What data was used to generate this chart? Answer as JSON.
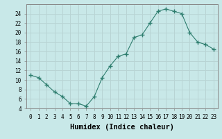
{
  "x": [
    0,
    1,
    2,
    3,
    4,
    5,
    6,
    7,
    8,
    9,
    10,
    11,
    12,
    13,
    14,
    15,
    16,
    17,
    18,
    19,
    20,
    21,
    22,
    23
  ],
  "y": [
    11,
    10.5,
    9,
    7.5,
    6.5,
    5,
    5,
    4.5,
    6.5,
    10.5,
    13,
    15,
    15.5,
    19,
    19.5,
    22,
    24.5,
    25,
    24.5,
    24,
    20,
    18,
    17.5,
    16.5
  ],
  "line_color": "#2e7d6e",
  "marker": "+",
  "marker_size": 4,
  "bg_color": "#c8e8e8",
  "grid_color": "#b8d4d4",
  "xlabel": "Humidex (Indice chaleur)",
  "ylim": [
    4,
    26
  ],
  "xlim": [
    -0.5,
    23.5
  ],
  "yticks": [
    4,
    6,
    8,
    10,
    12,
    14,
    16,
    18,
    20,
    22,
    24
  ],
  "xticks": [
    0,
    1,
    2,
    3,
    4,
    5,
    6,
    7,
    8,
    9,
    10,
    11,
    12,
    13,
    14,
    15,
    16,
    17,
    18,
    19,
    20,
    21,
    22,
    23
  ],
  "tick_fontsize": 5.5,
  "xlabel_fontsize": 7.5
}
